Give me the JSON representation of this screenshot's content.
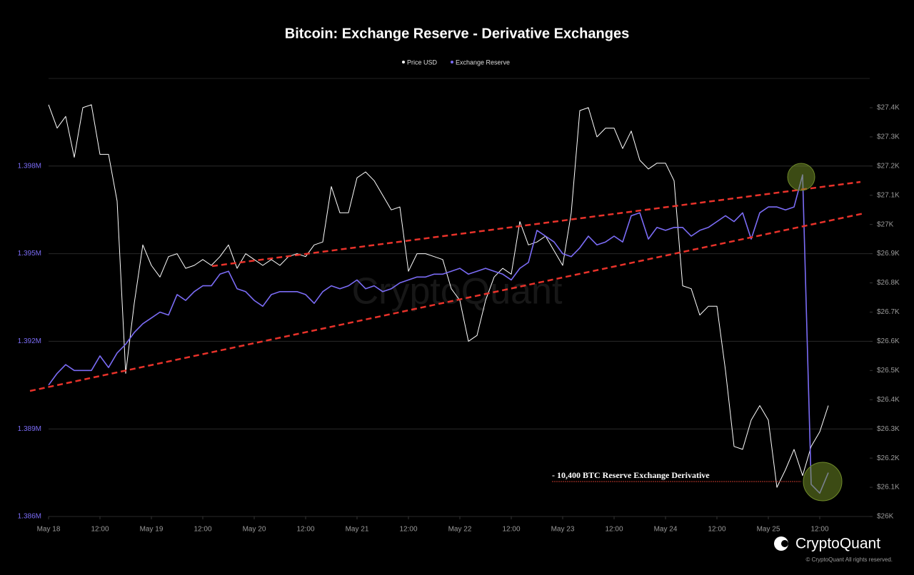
{
  "chart_data": {
    "type": "line",
    "title": "Bitcoin: Exchange Reserve - Derivative Exchanges",
    "annotation": "- 10,400 BTC  Reserve Exchange Derivative",
    "watermark": "CryptoQuant",
    "brand": "CryptoQuant",
    "copyright": "© CryptoQuant All rights reserved.",
    "x": [
      "May 18 00:00",
      "May 18 02:00",
      "May 18 04:00",
      "May 18 06:00",
      "May 18 08:00",
      "May 18 10:00",
      "May 18 12:00",
      "May 18 14:00",
      "May 18 16:00",
      "May 18 18:00",
      "May 18 20:00",
      "May 18 22:00",
      "May 19 00:00",
      "May 19 02:00",
      "May 19 04:00",
      "May 19 06:00",
      "May 19 08:00",
      "May 19 10:00",
      "May 19 12:00",
      "May 19 14:00",
      "May 19 16:00",
      "May 19 18:00",
      "May 19 20:00",
      "May 19 22:00",
      "May 20 00:00",
      "May 20 02:00",
      "May 20 04:00",
      "May 20 06:00",
      "May 20 08:00",
      "May 20 10:00",
      "May 20 12:00",
      "May 20 14:00",
      "May 20 16:00",
      "May 20 18:00",
      "May 20 20:00",
      "May 20 22:00",
      "May 21 00:00",
      "May 21 02:00",
      "May 21 04:00",
      "May 21 06:00",
      "May 21 08:00",
      "May 21 10:00",
      "May 21 12:00",
      "May 21 14:00",
      "May 21 16:00",
      "May 21 18:00",
      "May 21 20:00",
      "May 21 22:00",
      "May 22 00:00",
      "May 22 02:00",
      "May 22 04:00",
      "May 22 06:00",
      "May 22 08:00",
      "May 22 10:00",
      "May 22 12:00",
      "May 22 14:00",
      "May 22 16:00",
      "May 22 18:00",
      "May 22 20:00",
      "May 22 22:00",
      "May 23 00:00",
      "May 23 02:00",
      "May 23 04:00",
      "May 23 06:00",
      "May 23 08:00",
      "May 23 10:00",
      "May 23 12:00",
      "May 23 14:00",
      "May 23 16:00",
      "May 23 18:00",
      "May 23 20:00",
      "May 23 22:00",
      "May 24 00:00",
      "May 24 02:00",
      "May 24 04:00",
      "May 24 06:00",
      "May 24 08:00",
      "May 24 10:00",
      "May 24 12:00",
      "May 24 14:00",
      "May 24 16:00",
      "May 24 18:00",
      "May 24 20:00",
      "May 24 22:00",
      "May 25 00:00",
      "May 25 02:00",
      "May 25 04:00",
      "May 25 06:00",
      "May 25 08:00",
      "May 25 10:00",
      "May 25 12:00",
      "May 25 14:00"
    ],
    "xlim": [
      "May 18 00:00",
      "May 25 23:40"
    ],
    "xticks": [
      {
        "value": "May 18 00:00",
        "label": "May 18"
      },
      {
        "value": "May 18 12:00",
        "label": "12:00"
      },
      {
        "value": "May 19 00:00",
        "label": "May 19"
      },
      {
        "value": "May 19 12:00",
        "label": "12:00"
      },
      {
        "value": "May 20 00:00",
        "label": "May 20"
      },
      {
        "value": "May 20 12:00",
        "label": "12:00"
      },
      {
        "value": "May 21 00:00",
        "label": "May 21"
      },
      {
        "value": "May 21 12:00",
        "label": "12:00"
      },
      {
        "value": "May 22 00:00",
        "label": "May 22"
      },
      {
        "value": "May 22 12:00",
        "label": "12:00"
      },
      {
        "value": "May 23 00:00",
        "label": "May 23"
      },
      {
        "value": "May 23 12:00",
        "label": "12:00"
      },
      {
        "value": "May 24 00:00",
        "label": "May 24"
      },
      {
        "value": "May 24 12:00",
        "label": "12:00"
      },
      {
        "value": "May 25 00:00",
        "label": "May 25"
      },
      {
        "value": "May 25 12:00",
        "label": "12:00"
      }
    ],
    "ylim": [
      1386000,
      1401000
    ],
    "yticks": [
      {
        "value": 1386000,
        "label": "1.386M"
      },
      {
        "value": 1389000,
        "label": "1.389M"
      },
      {
        "value": 1392000,
        "label": "1.392M"
      },
      {
        "value": 1395000,
        "label": "1.395M"
      },
      {
        "value": 1398000,
        "label": "1.398M"
      }
    ],
    "y2lim": [
      26000,
      27500
    ],
    "y2ticks": [
      {
        "value": 26000,
        "label": "$26K"
      },
      {
        "value": 26100,
        "label": "$26.1K"
      },
      {
        "value": 26200,
        "label": "$26.2K"
      },
      {
        "value": 26300,
        "label": "$26.3K"
      },
      {
        "value": 26400,
        "label": "$26.4K"
      },
      {
        "value": 26500,
        "label": "$26.5K"
      },
      {
        "value": 26600,
        "label": "$26.6K"
      },
      {
        "value": 26700,
        "label": "$26.7K"
      },
      {
        "value": 26800,
        "label": "$26.8K"
      },
      {
        "value": 26900,
        "label": "$26.9K"
      },
      {
        "value": 27000,
        "label": "$27K"
      },
      {
        "value": 27100,
        "label": "$27.1K"
      },
      {
        "value": 27200,
        "label": "$27.2K"
      },
      {
        "value": 27300,
        "label": "$27.3K"
      },
      {
        "value": 27400,
        "label": "$27.4K"
      }
    ],
    "grid": true,
    "series": [
      {
        "name": "Price USD",
        "color": "#ffffff",
        "axis": "y2",
        "values": [
          27410,
          27330,
          27370,
          27230,
          27400,
          27410,
          27240,
          27240,
          27080,
          26490,
          26730,
          26930,
          26860,
          26820,
          26890,
          26900,
          26850,
          26860,
          26880,
          26860,
          26890,
          26930,
          26850,
          26900,
          26880,
          26860,
          26880,
          26860,
          26890,
          26900,
          26890,
          26930,
          26940,
          27130,
          27040,
          27040,
          27160,
          27180,
          27150,
          27100,
          27050,
          27060,
          26840,
          26900,
          26900,
          26890,
          26880,
          26780,
          26740,
          26600,
          26620,
          26740,
          26820,
          26850,
          26830,
          27010,
          26930,
          26940,
          26960,
          26910,
          26860,
          27040,
          27390,
          27400,
          27300,
          27330,
          27330,
          27260,
          27320,
          27220,
          27190,
          27210,
          27210,
          27150,
          26790,
          26780,
          26690,
          26720,
          26720,
          26500,
          26240,
          26230,
          26330,
          26380,
          26330,
          26100,
          26160,
          26230,
          26140,
          26240,
          26290,
          26380
        ]
      },
      {
        "name": "Exchange Reserve",
        "color": "#7b6cf6",
        "values": [
          1390500,
          1390900,
          1391200,
          1391000,
          1391000,
          1391000,
          1391500,
          1391100,
          1391600,
          1391900,
          1392300,
          1392600,
          1392800,
          1393000,
          1392900,
          1393600,
          1393400,
          1393700,
          1393900,
          1393900,
          1394300,
          1394400,
          1393800,
          1393700,
          1393400,
          1393200,
          1393600,
          1393700,
          1393700,
          1393700,
          1393600,
          1393300,
          1393700,
          1393900,
          1393800,
          1393900,
          1394100,
          1393800,
          1393900,
          1393700,
          1393800,
          1394000,
          1394100,
          1394200,
          1394200,
          1394300,
          1394300,
          1394400,
          1394500,
          1394300,
          1394400,
          1394500,
          1394400,
          1394300,
          1394100,
          1394500,
          1394700,
          1395800,
          1395600,
          1395400,
          1395000,
          1394900,
          1395200,
          1395600,
          1395300,
          1395400,
          1395600,
          1395400,
          1396300,
          1396400,
          1395500,
          1395900,
          1395800,
          1395900,
          1395900,
          1395600,
          1395800,
          1395900,
          1396100,
          1396300,
          1396100,
          1396400,
          1395500,
          1396400,
          1396600,
          1396600,
          1396500,
          1396600,
          1397700,
          1387100,
          1386800,
          1387500
        ]
      }
    ]
  }
}
